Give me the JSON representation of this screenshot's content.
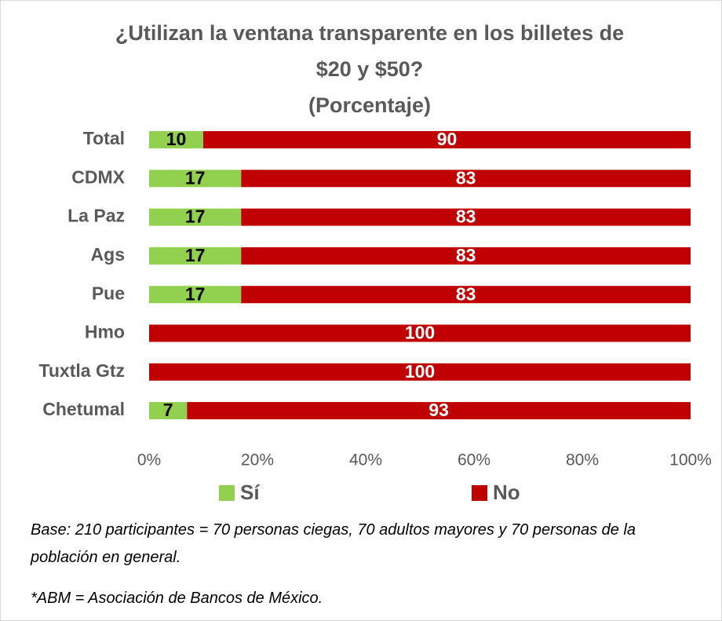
{
  "chart_data": {
    "type": "stacked_barh",
    "title": "¿Utilizan la ventana transparente en los billetes de $20 y $50?",
    "subtitle": "(Porcentaje)",
    "categories": [
      "Total",
      "CDMX",
      "La Paz",
      "Ags",
      "Pue",
      "Hmo",
      "Tuxtla Gtz",
      "Chetumal"
    ],
    "series": [
      {
        "name": "Sí",
        "color": "#92d050",
        "values": [
          10,
          17,
          17,
          17,
          17,
          0,
          0,
          7
        ]
      },
      {
        "name": "No",
        "color": "#c00000",
        "values": [
          90,
          83,
          83,
          83,
          83,
          100,
          100,
          93
        ]
      }
    ],
    "xlim": [
      0,
      100
    ],
    "xticks": [
      {
        "value": 0,
        "label": "0%"
      },
      {
        "value": 20,
        "label": "20%"
      },
      {
        "value": 40,
        "label": "40%"
      },
      {
        "value": 60,
        "label": "60%"
      },
      {
        "value": 80,
        "label": "80%"
      },
      {
        "value": 100,
        "label": "100%"
      }
    ],
    "legend": "bottom",
    "annotations": [
      "Base: 210 participantes = 70 personas ciegas, 70 adultos mayores y 70 personas de la población en general.",
      "*ABM = Asociación de Bancos de México."
    ]
  }
}
